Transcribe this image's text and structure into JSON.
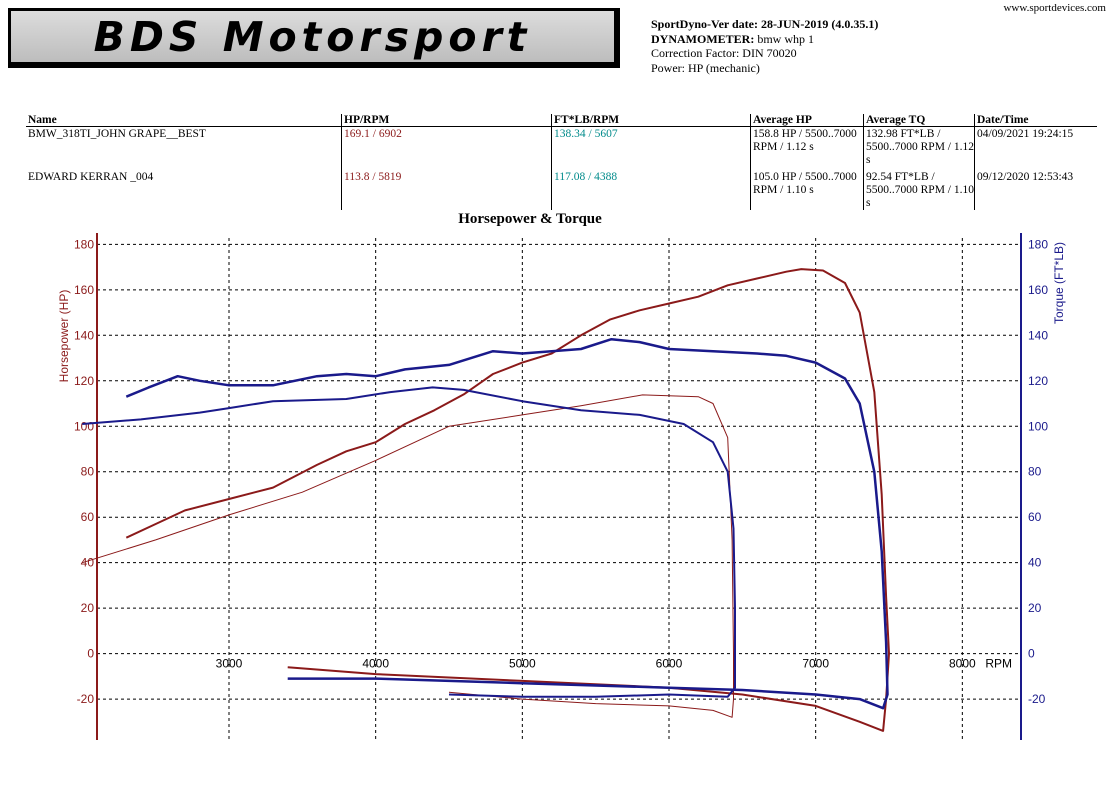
{
  "header": {
    "logo_text": "BDS Motorsport",
    "website": "www.sportdevices.com",
    "version_label": "SportDyno-Ver date: 28-JUN-2019 (4.0.35.1)",
    "dyno_label": "DYNAMOMETER:",
    "dyno_value": " bmw whp 1",
    "correction": "Correction Factor: DIN 70020",
    "power": "Power: HP (mechanic)"
  },
  "table": {
    "headers": [
      "Name",
      "HP/RPM",
      "FT*LB/RPM",
      "Average HP",
      "Average TQ",
      "Date/Time"
    ],
    "rows": [
      {
        "name": "BMW_318TI_JOHN GRAPE__BEST",
        "hp": "169.1 / 6902",
        "tq": "138.34 / 5607",
        "avg_hp": "158.8 HP / 5500..7000 RPM / 1.12 s",
        "avg_tq": "132.98 FT*LB / 5500..7000 RPM / 1.12 s",
        "date": "04/09/2021 19:24:15"
      },
      {
        "name": "EDWARD KERRAN _004",
        "hp": "113.8 / 5819",
        "tq": "117.08 / 4388",
        "avg_hp": "105.0 HP / 5500..7000 RPM / 1.10 s",
        "avg_tq": "92.54 FT*LB / 5500..7000 RPM / 1.10 s",
        "date": "09/12/2020 12:53:43"
      }
    ]
  },
  "chart_data": {
    "type": "line",
    "title": "Horsepower & Torque",
    "xlabel": "RPM",
    "ylabel_left": "Horsepower (HP)",
    "ylabel_right": "Torque (FT*LB)",
    "xlim": [
      2100,
      8400
    ],
    "ylim": [
      -38,
      185
    ],
    "xticks": [
      3000,
      4000,
      5000,
      6000,
      7000,
      8000
    ],
    "yticks": [
      -20,
      0,
      20,
      40,
      60,
      80,
      100,
      120,
      140,
      160,
      180
    ],
    "grid": true,
    "colors": {
      "hp": "#8b1a1a",
      "tq": "#1a1a8b",
      "axis_left": "#8b1a1a",
      "axis_right": "#1a1a8b",
      "hp_label": "#8b1a1a",
      "tq_label": "#008b8b"
    },
    "series": [
      {
        "name": "BMW_318TI_JOHN GRAPE__BEST",
        "kind": "hp",
        "width": 2,
        "points": [
          [
            2300,
            51
          ],
          [
            2500,
            57
          ],
          [
            2700,
            63
          ],
          [
            3000,
            68
          ],
          [
            3300,
            73
          ],
          [
            3600,
            83
          ],
          [
            3800,
            89
          ],
          [
            4000,
            93
          ],
          [
            4200,
            101
          ],
          [
            4400,
            107
          ],
          [
            4600,
            114
          ],
          [
            4800,
            123
          ],
          [
            5000,
            128
          ],
          [
            5200,
            132
          ],
          [
            5400,
            140
          ],
          [
            5600,
            147
          ],
          [
            5800,
            151
          ],
          [
            6000,
            154
          ],
          [
            6200,
            157
          ],
          [
            6400,
            162
          ],
          [
            6600,
            165
          ],
          [
            6800,
            168
          ],
          [
            6902,
            169.1
          ],
          [
            7050,
            168.5
          ],
          [
            7200,
            163
          ],
          [
            7300,
            150
          ],
          [
            7400,
            115
          ],
          [
            7450,
            70
          ],
          [
            7480,
            25
          ],
          [
            7500,
            0
          ],
          [
            7480,
            -20
          ],
          [
            7460,
            -34
          ],
          [
            7300,
            -30
          ],
          [
            7000,
            -23
          ],
          [
            6500,
            -18
          ],
          [
            6000,
            -15
          ],
          [
            5000,
            -12
          ],
          [
            4000,
            -9
          ],
          [
            3400,
            -6
          ]
        ]
      },
      {
        "name": "BMW_318TI_JOHN GRAPE__BEST",
        "kind": "tq",
        "width": 2.5,
        "points": [
          [
            2300,
            113
          ],
          [
            2450,
            117
          ],
          [
            2650,
            122
          ],
          [
            2800,
            120
          ],
          [
            3000,
            118
          ],
          [
            3300,
            118
          ],
          [
            3600,
            122
          ],
          [
            3800,
            123
          ],
          [
            4000,
            122
          ],
          [
            4200,
            125
          ],
          [
            4500,
            127
          ],
          [
            4800,
            133
          ],
          [
            5000,
            132
          ],
          [
            5200,
            133
          ],
          [
            5400,
            134
          ],
          [
            5607,
            138.3
          ],
          [
            5800,
            137
          ],
          [
            6000,
            134
          ],
          [
            6300,
            133
          ],
          [
            6600,
            132
          ],
          [
            6800,
            131
          ],
          [
            7000,
            128
          ],
          [
            7200,
            121
          ],
          [
            7300,
            110
          ],
          [
            7400,
            80
          ],
          [
            7450,
            45
          ],
          [
            7480,
            5
          ],
          [
            7490,
            -18
          ],
          [
            7460,
            -24
          ],
          [
            7300,
            -20
          ],
          [
            7000,
            -18
          ],
          [
            6500,
            -16
          ],
          [
            6000,
            -15
          ],
          [
            5000,
            -13
          ],
          [
            4000,
            -11
          ],
          [
            3400,
            -11
          ]
        ]
      },
      {
        "name": "EDWARD KERRAN _004",
        "kind": "hp",
        "width": 1,
        "points": [
          [
            2000,
            40
          ],
          [
            2500,
            50
          ],
          [
            3000,
            61
          ],
          [
            3500,
            71
          ],
          [
            4000,
            85
          ],
          [
            4500,
            100
          ],
          [
            5000,
            105
          ],
          [
            5400,
            109
          ],
          [
            5819,
            113.8
          ],
          [
            6200,
            113
          ],
          [
            6300,
            110
          ],
          [
            6400,
            95
          ],
          [
            6430,
            50
          ],
          [
            6440,
            0
          ],
          [
            6440,
            -20
          ],
          [
            6430,
            -28
          ],
          [
            6300,
            -25
          ],
          [
            6000,
            -23
          ],
          [
            5500,
            -22
          ],
          [
            5000,
            -20
          ],
          [
            4500,
            -17
          ]
        ]
      },
      {
        "name": "EDWARD KERRAN _004",
        "kind": "tq",
        "width": 2,
        "points": [
          [
            2000,
            101
          ],
          [
            2400,
            103
          ],
          [
            2800,
            106
          ],
          [
            3000,
            108
          ],
          [
            3300,
            111
          ],
          [
            3800,
            112
          ],
          [
            4100,
            115
          ],
          [
            4388,
            117.1
          ],
          [
            4600,
            116
          ],
          [
            5000,
            111
          ],
          [
            5400,
            107
          ],
          [
            5800,
            105
          ],
          [
            6100,
            101
          ],
          [
            6300,
            93
          ],
          [
            6400,
            80
          ],
          [
            6440,
            55
          ],
          [
            6450,
            20
          ],
          [
            6450,
            -15
          ],
          [
            6400,
            -19
          ],
          [
            6000,
            -18
          ],
          [
            5500,
            -19
          ],
          [
            5000,
            -19
          ],
          [
            4500,
            -18
          ]
        ]
      }
    ]
  }
}
